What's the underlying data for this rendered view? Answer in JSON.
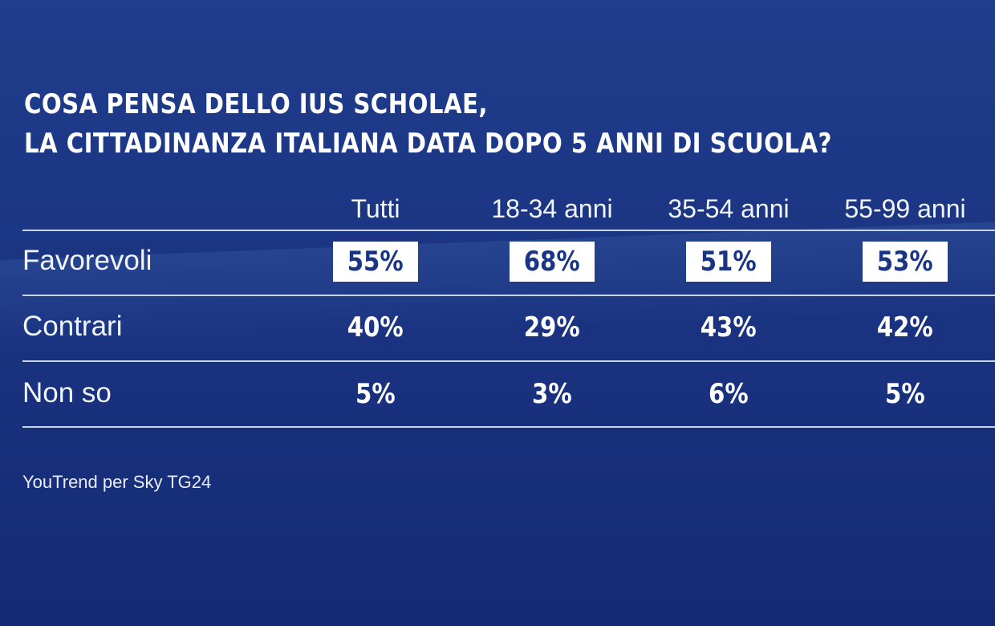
{
  "title": {
    "line1": "COSA PENSA DELLO IUS SCHOLAE,",
    "line2": "LA CITTADINANZA ITALIANA DATA DOPO 5 ANNI DI SCUOLA?"
  },
  "source": "YouTrend per Sky TG24",
  "chart_data": {
    "type": "table",
    "columns": [
      "Tutti",
      "18-34 anni",
      "35-54 anni",
      "55-99 anni"
    ],
    "rows": [
      {
        "label": "Favorevoli",
        "values": [
          "55%",
          "68%",
          "51%",
          "53%"
        ],
        "highlighted": true
      },
      {
        "label": "Contrari",
        "values": [
          "40%",
          "29%",
          "43%",
          "42%"
        ],
        "highlighted": false
      },
      {
        "label": "Non so",
        "values": [
          "5%",
          "3%",
          "6%",
          "5%"
        ],
        "highlighted": false
      }
    ]
  },
  "colors": {
    "background": "#1b3583",
    "highlight_box": "#ffffff",
    "highlight_text": "#1a3584",
    "text": "#ffffff"
  }
}
